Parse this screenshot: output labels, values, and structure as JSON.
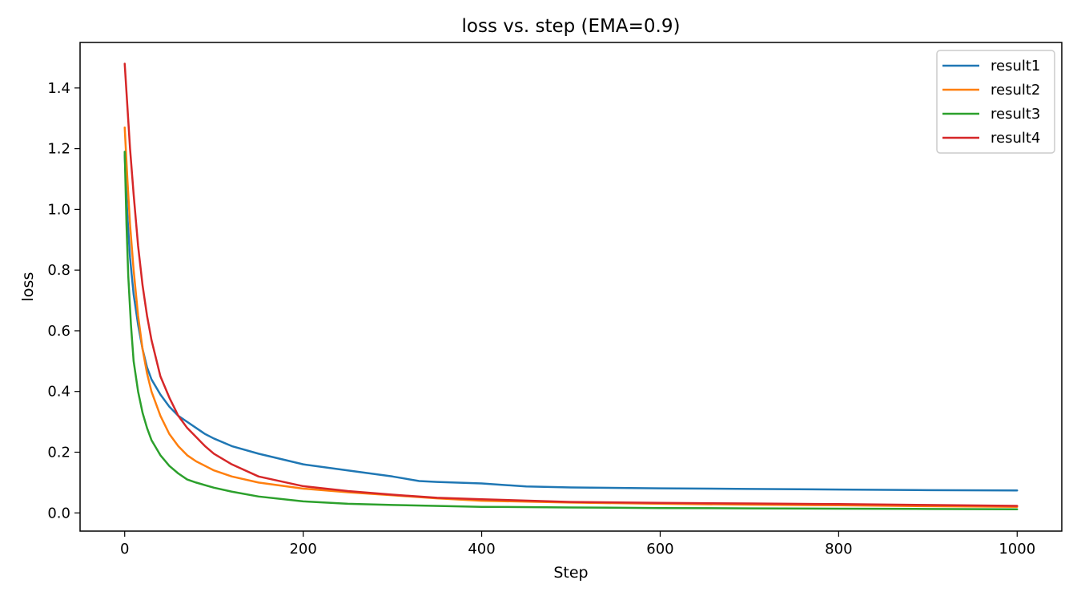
{
  "chart_data": {
    "type": "line",
    "title": "loss vs. step (EMA=0.9)",
    "xlabel": "Step",
    "ylabel": "loss",
    "xlim": [
      -50,
      1050
    ],
    "ylim": [
      -0.06,
      1.55
    ],
    "xticks": [
      0,
      200,
      400,
      600,
      800,
      1000
    ],
    "xtick_labels": [
      "0",
      "200",
      "400",
      "600",
      "800",
      "1000"
    ],
    "yticks": [
      0.0,
      0.2,
      0.4,
      0.6,
      0.8,
      1.0,
      1.2,
      1.4
    ],
    "ytick_labels": [
      "0.0",
      "0.2",
      "0.4",
      "0.6",
      "0.8",
      "1.0",
      "1.2",
      "1.4"
    ],
    "grid": false,
    "legend_position": "top-right",
    "series": [
      {
        "name": "result1",
        "color": "#1f77b4",
        "points": [
          [
            0,
            1.18
          ],
          [
            3,
            0.98
          ],
          [
            6,
            0.84
          ],
          [
            10,
            0.72
          ],
          [
            15,
            0.62
          ],
          [
            20,
            0.54
          ],
          [
            25,
            0.48
          ],
          [
            30,
            0.44
          ],
          [
            40,
            0.39
          ],
          [
            50,
            0.35
          ],
          [
            60,
            0.32
          ],
          [
            70,
            0.3
          ],
          [
            80,
            0.28
          ],
          [
            90,
            0.26
          ],
          [
            100,
            0.245
          ],
          [
            120,
            0.22
          ],
          [
            150,
            0.195
          ],
          [
            200,
            0.16
          ],
          [
            250,
            0.14
          ],
          [
            300,
            0.12
          ],
          [
            330,
            0.105
          ],
          [
            350,
            0.102
          ],
          [
            400,
            0.097
          ],
          [
            450,
            0.087
          ],
          [
            500,
            0.084
          ],
          [
            600,
            0.081
          ],
          [
            700,
            0.079
          ],
          [
            800,
            0.077
          ],
          [
            900,
            0.075
          ],
          [
            1000,
            0.074
          ]
        ]
      },
      {
        "name": "result2",
        "color": "#ff7f0e",
        "points": [
          [
            0,
            1.27
          ],
          [
            3,
            1.1
          ],
          [
            6,
            0.95
          ],
          [
            10,
            0.8
          ],
          [
            15,
            0.65
          ],
          [
            20,
            0.54
          ],
          [
            25,
            0.46
          ],
          [
            30,
            0.4
          ],
          [
            40,
            0.32
          ],
          [
            50,
            0.26
          ],
          [
            60,
            0.22
          ],
          [
            70,
            0.19
          ],
          [
            80,
            0.17
          ],
          [
            100,
            0.14
          ],
          [
            120,
            0.12
          ],
          [
            150,
            0.1
          ],
          [
            200,
            0.08
          ],
          [
            250,
            0.068
          ],
          [
            300,
            0.058
          ],
          [
            350,
            0.048
          ],
          [
            400,
            0.04
          ],
          [
            500,
            0.034
          ],
          [
            600,
            0.03
          ],
          [
            700,
            0.027
          ],
          [
            800,
            0.025
          ],
          [
            900,
            0.022
          ],
          [
            1000,
            0.02
          ]
        ]
      },
      {
        "name": "result3",
        "color": "#2ca02c",
        "points": [
          [
            0,
            1.19
          ],
          [
            2,
            0.95
          ],
          [
            4,
            0.78
          ],
          [
            7,
            0.62
          ],
          [
            10,
            0.5
          ],
          [
            15,
            0.4
          ],
          [
            20,
            0.33
          ],
          [
            25,
            0.28
          ],
          [
            30,
            0.24
          ],
          [
            40,
            0.19
          ],
          [
            50,
            0.155
          ],
          [
            60,
            0.13
          ],
          [
            70,
            0.11
          ],
          [
            80,
            0.1
          ],
          [
            100,
            0.083
          ],
          [
            120,
            0.07
          ],
          [
            150,
            0.054
          ],
          [
            200,
            0.038
          ],
          [
            250,
            0.03
          ],
          [
            300,
            0.026
          ],
          [
            400,
            0.02
          ],
          [
            500,
            0.018
          ],
          [
            600,
            0.016
          ],
          [
            700,
            0.015
          ],
          [
            800,
            0.014
          ],
          [
            900,
            0.013
          ],
          [
            1000,
            0.012
          ]
        ]
      },
      {
        "name": "result4",
        "color": "#d62728",
        "points": [
          [
            0,
            1.48
          ],
          [
            3,
            1.34
          ],
          [
            6,
            1.2
          ],
          [
            10,
            1.05
          ],
          [
            15,
            0.88
          ],
          [
            20,
            0.75
          ],
          [
            25,
            0.65
          ],
          [
            30,
            0.57
          ],
          [
            40,
            0.45
          ],
          [
            50,
            0.38
          ],
          [
            60,
            0.32
          ],
          [
            70,
            0.28
          ],
          [
            80,
            0.25
          ],
          [
            90,
            0.22
          ],
          [
            100,
            0.195
          ],
          [
            120,
            0.16
          ],
          [
            150,
            0.12
          ],
          [
            200,
            0.088
          ],
          [
            250,
            0.072
          ],
          [
            300,
            0.06
          ],
          [
            350,
            0.05
          ],
          [
            400,
            0.045
          ],
          [
            500,
            0.036
          ],
          [
            600,
            0.033
          ],
          [
            700,
            0.031
          ],
          [
            800,
            0.029
          ],
          [
            900,
            0.026
          ],
          [
            1000,
            0.023
          ]
        ]
      }
    ]
  }
}
